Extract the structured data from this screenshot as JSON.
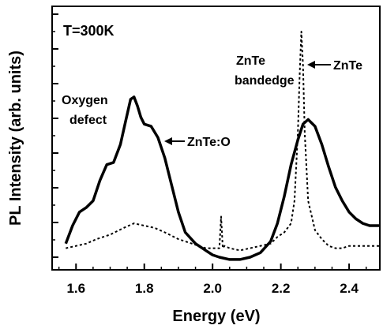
{
  "chart_data": {
    "type": "line",
    "title": "",
    "xlabel": "Energy (eV)",
    "ylabel": "PL Intensity (arb. units)",
    "xlim": [
      1.53,
      2.49
    ],
    "ylim": [
      0,
      1.0
    ],
    "x_ticks": [
      "1.6",
      "1.8",
      "2.0",
      "2.2",
      "2.4"
    ],
    "x_tick_values": [
      1.6,
      1.8,
      2.0,
      2.2,
      2.4
    ],
    "y_tick_labels_shown": false,
    "grid": false,
    "annotations": {
      "temperature": "T=300K",
      "oxygen_line1": "Oxygen",
      "oxygen_line2": "defect",
      "zntea_line1": "ZnTe",
      "zntea_line2": "bandedge",
      "znte_o_arrow": "ZnTe:O",
      "znte_arrow": "ZnTe"
    },
    "series": [
      {
        "name": "ZnTe:O",
        "style": "solid",
        "color": "#000000",
        "x": [
          1.57,
          1.59,
          1.61,
          1.63,
          1.65,
          1.67,
          1.69,
          1.71,
          1.73,
          1.745,
          1.76,
          1.77,
          1.78,
          1.79,
          1.8,
          1.82,
          1.84,
          1.86,
          1.88,
          1.9,
          1.92,
          1.95,
          1.98,
          2.0,
          2.02,
          2.05,
          2.08,
          2.11,
          2.14,
          2.17,
          2.19,
          2.21,
          2.23,
          2.25,
          2.265,
          2.28,
          2.3,
          2.32,
          2.34,
          2.36,
          2.38,
          2.4,
          2.42,
          2.44,
          2.46,
          2.49
        ],
        "y": [
          0.06,
          0.14,
          0.2,
          0.22,
          0.25,
          0.34,
          0.41,
          0.42,
          0.5,
          0.6,
          0.7,
          0.71,
          0.67,
          0.62,
          0.59,
          0.58,
          0.53,
          0.44,
          0.32,
          0.2,
          0.11,
          0.06,
          0.03,
          0.01,
          0.0,
          -0.01,
          -0.01,
          0.0,
          0.02,
          0.07,
          0.15,
          0.27,
          0.41,
          0.52,
          0.59,
          0.61,
          0.58,
          0.5,
          0.4,
          0.31,
          0.25,
          0.2,
          0.17,
          0.15,
          0.14,
          0.14
        ]
      },
      {
        "name": "ZnTe",
        "style": "dashed",
        "color": "#000000",
        "x": [
          1.57,
          1.6,
          1.63,
          1.66,
          1.7,
          1.74,
          1.77,
          1.8,
          1.83,
          1.86,
          1.9,
          1.94,
          1.98,
          2.0,
          2.02,
          2.025,
          2.03,
          2.035,
          2.05,
          2.08,
          2.11,
          2.14,
          2.17,
          2.19,
          2.21,
          2.23,
          2.24,
          2.25,
          2.255,
          2.26,
          2.265,
          2.27,
          2.28,
          2.3,
          2.32,
          2.34,
          2.36,
          2.38,
          2.4,
          2.43,
          2.46,
          2.49
        ],
        "y": [
          0.04,
          0.05,
          0.06,
          0.08,
          0.1,
          0.13,
          0.15,
          0.14,
          0.13,
          0.11,
          0.08,
          0.06,
          0.04,
          0.04,
          0.04,
          0.18,
          0.04,
          0.05,
          0.04,
          0.03,
          0.04,
          0.05,
          0.06,
          0.09,
          0.11,
          0.15,
          0.25,
          0.55,
          0.8,
          1.0,
          0.85,
          0.55,
          0.25,
          0.12,
          0.08,
          0.05,
          0.04,
          0.04,
          0.05,
          0.05,
          0.05,
          0.05
        ]
      }
    ]
  }
}
